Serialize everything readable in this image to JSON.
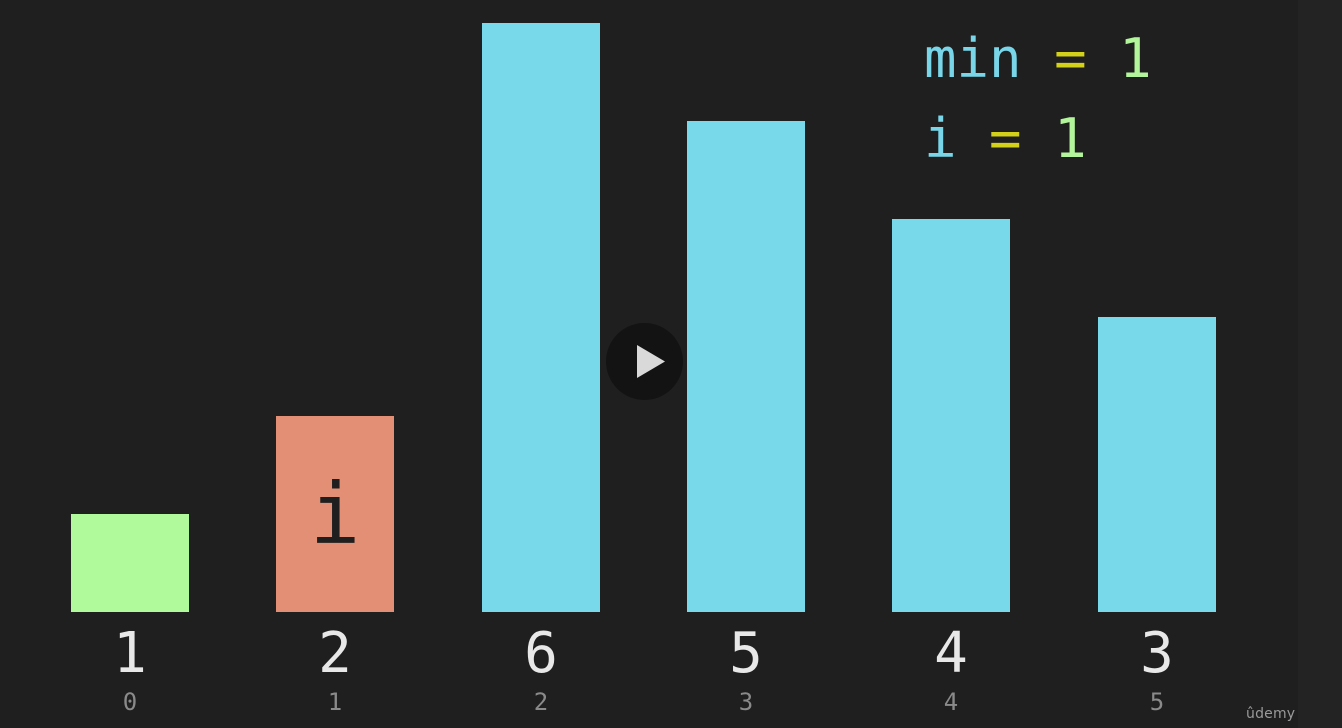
{
  "colors": {
    "background": "#1f1f1f",
    "bar_default": "#78d9ea",
    "bar_min": "#b0fa9b",
    "bar_current": "#e38f76",
    "value_text": "#e8e8e8",
    "index_text": "#8a8a8a",
    "var_name": "#78d6e8",
    "var_equals": "#d4d11a",
    "var_value": "#b2f59a"
  },
  "variables": {
    "min": {
      "name": "min",
      "equals": "=",
      "value": "1"
    },
    "i": {
      "name": "i",
      "equals": "=",
      "value": "1"
    }
  },
  "chart_data": {
    "type": "bar",
    "categories": [
      "0",
      "1",
      "2",
      "3",
      "4",
      "5"
    ],
    "values": [
      1,
      2,
      6,
      5,
      4,
      3
    ],
    "labels": [
      "1",
      "2",
      "6",
      "5",
      "4",
      "3"
    ],
    "indices": [
      "0",
      "1",
      "2",
      "3",
      "4",
      "5"
    ],
    "states": [
      "min",
      "current",
      "default",
      "default",
      "default",
      "default"
    ],
    "markers": [
      "",
      "i",
      "",
      "",
      "",
      ""
    ],
    "title": "",
    "xlabel": "",
    "ylabel": "",
    "ylim": [
      0,
      6
    ]
  },
  "player": {
    "play_icon": "play-icon"
  },
  "brand": {
    "logo_text": "ûdemy"
  }
}
